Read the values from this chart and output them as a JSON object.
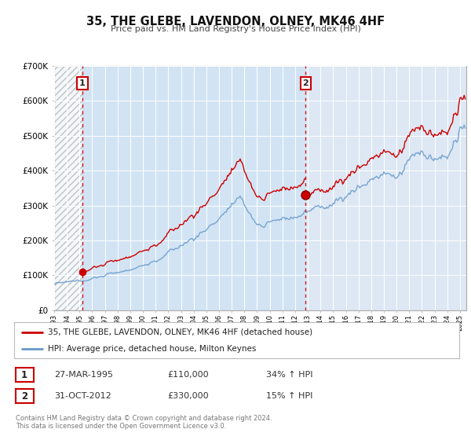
{
  "title": "35, THE GLEBE, LAVENDON, OLNEY, MK46 4HF",
  "subtitle": "Price paid vs. HM Land Registry's House Price Index (HPI)",
  "background_color": "#ffffff",
  "plot_bg_color": "#ffffff",
  "hpi_color": "#6699cc",
  "price_color": "#cc0000",
  "sale1_date": 1995.23,
  "sale1_price": 110000,
  "sale2_date": 2012.83,
  "sale2_price": 330000,
  "ylim": [
    0,
    700000
  ],
  "xlim_left": 1993.0,
  "xlim_right": 2025.5,
  "legend_label1": "35, THE GLEBE, LAVENDON, OLNEY, MK46 4HF (detached house)",
  "legend_label2": "HPI: Average price, detached house, Milton Keynes",
  "table_row1": [
    "1",
    "27-MAR-1995",
    "£110,000",
    "34% ↑ HPI"
  ],
  "table_row2": [
    "2",
    "31-OCT-2012",
    "£330,000",
    "15% ↑ HPI"
  ],
  "footer": "Contains HM Land Registry data © Crown copyright and database right 2024.\nThis data is licensed under the Open Government Licence v3.0."
}
